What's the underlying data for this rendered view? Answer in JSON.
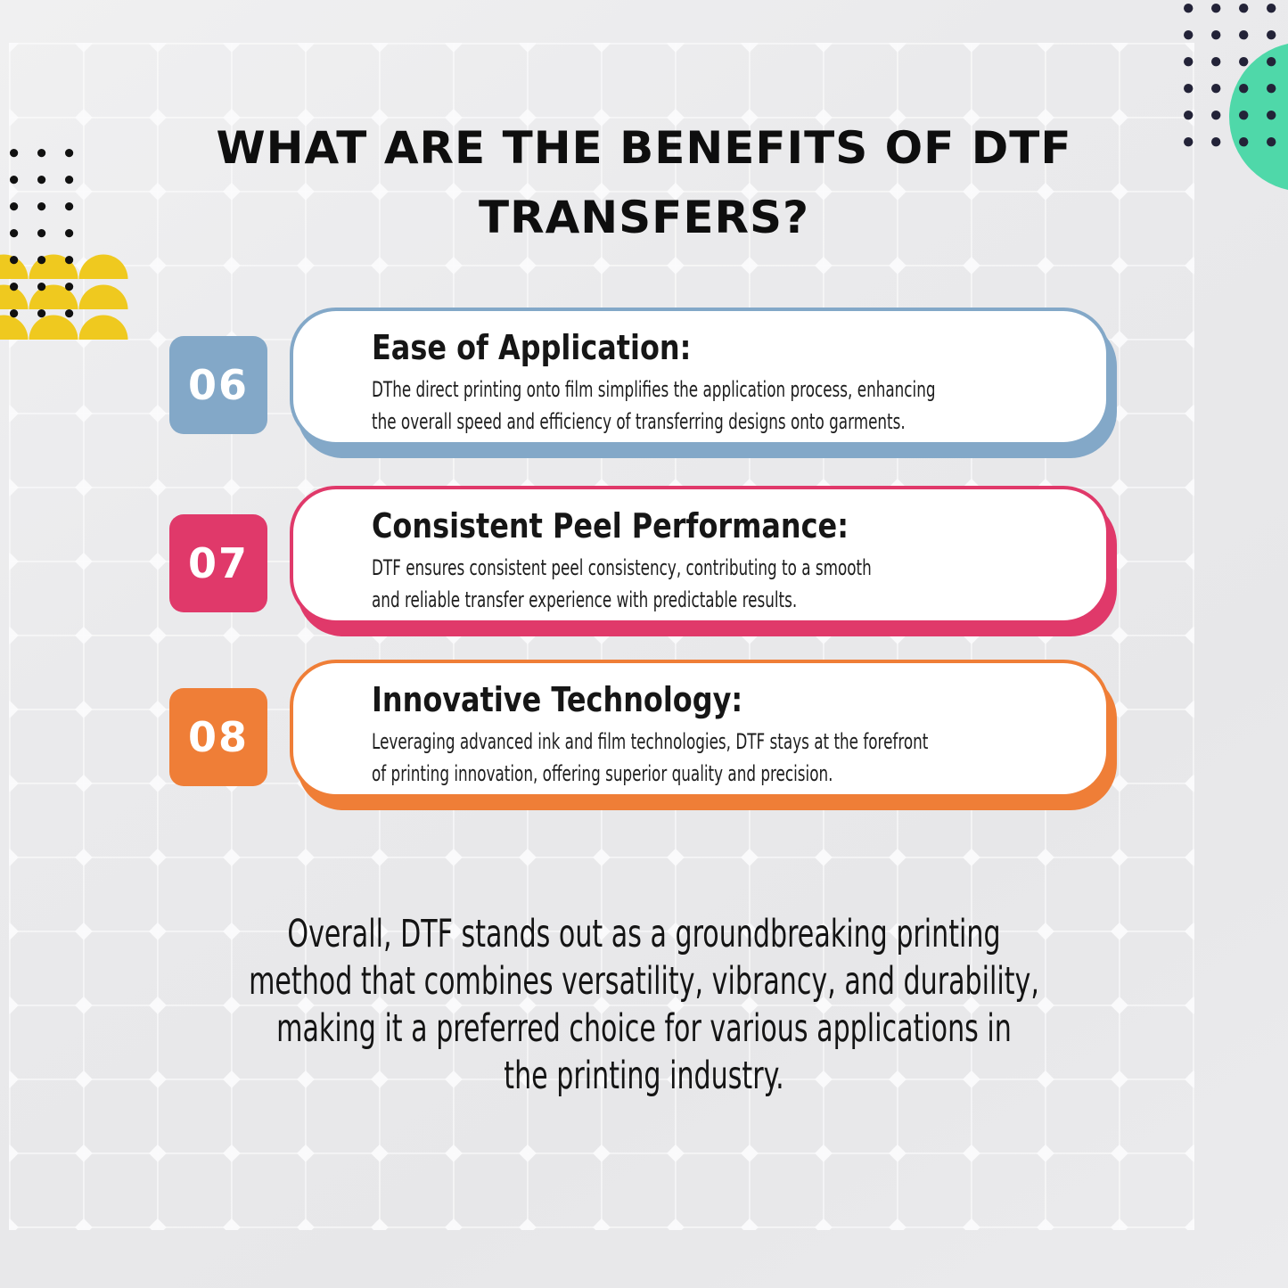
{
  "title_lines": [
    "WHAT ARE THE BENEFITS OF DTF",
    "TRANSFERS?"
  ],
  "benefits": [
    {
      "number": "06",
      "heading": "Ease of Application:",
      "description_lines": [
        "DThe direct printing onto film simplifies the application process, enhancing",
        "the overall speed and efficiency of transferring designs onto garments."
      ],
      "accent": "#83a8c8"
    },
    {
      "number": "07",
      "heading": "Consistent Peel Performance:",
      "description_lines": [
        "DTF ensures consistent peel consistency, contributing to a smooth",
        "and reliable transfer experience with predictable results."
      ],
      "accent": "#e0396a"
    },
    {
      "number": "08",
      "heading": "Innovative Technology:",
      "description_lines": [
        "Leveraging advanced ink and film technologies, DTF stays at the forefront",
        "of printing innovation, offering superior quality and precision."
      ],
      "accent": "#ef7e37"
    }
  ],
  "conclusion_lines": [
    "Overall, DTF stands out as a groundbreaking printing",
    "method that combines versatility, vibrancy, and durability,",
    "making it a preferred choice for various applications in",
    "the printing industry."
  ],
  "decor": {
    "background": "#e9e9eb",
    "grid_line": "#ffffff",
    "card_fill": "#ffffff",
    "yellow_semicircles": "#efc91f",
    "teal_circle": "#4fd8a9",
    "navy_dots": "#232338",
    "black_dots": "#111111",
    "number_text": "#ffffff",
    "heading_text": "#161616",
    "body_text": "#1d1d1d"
  }
}
